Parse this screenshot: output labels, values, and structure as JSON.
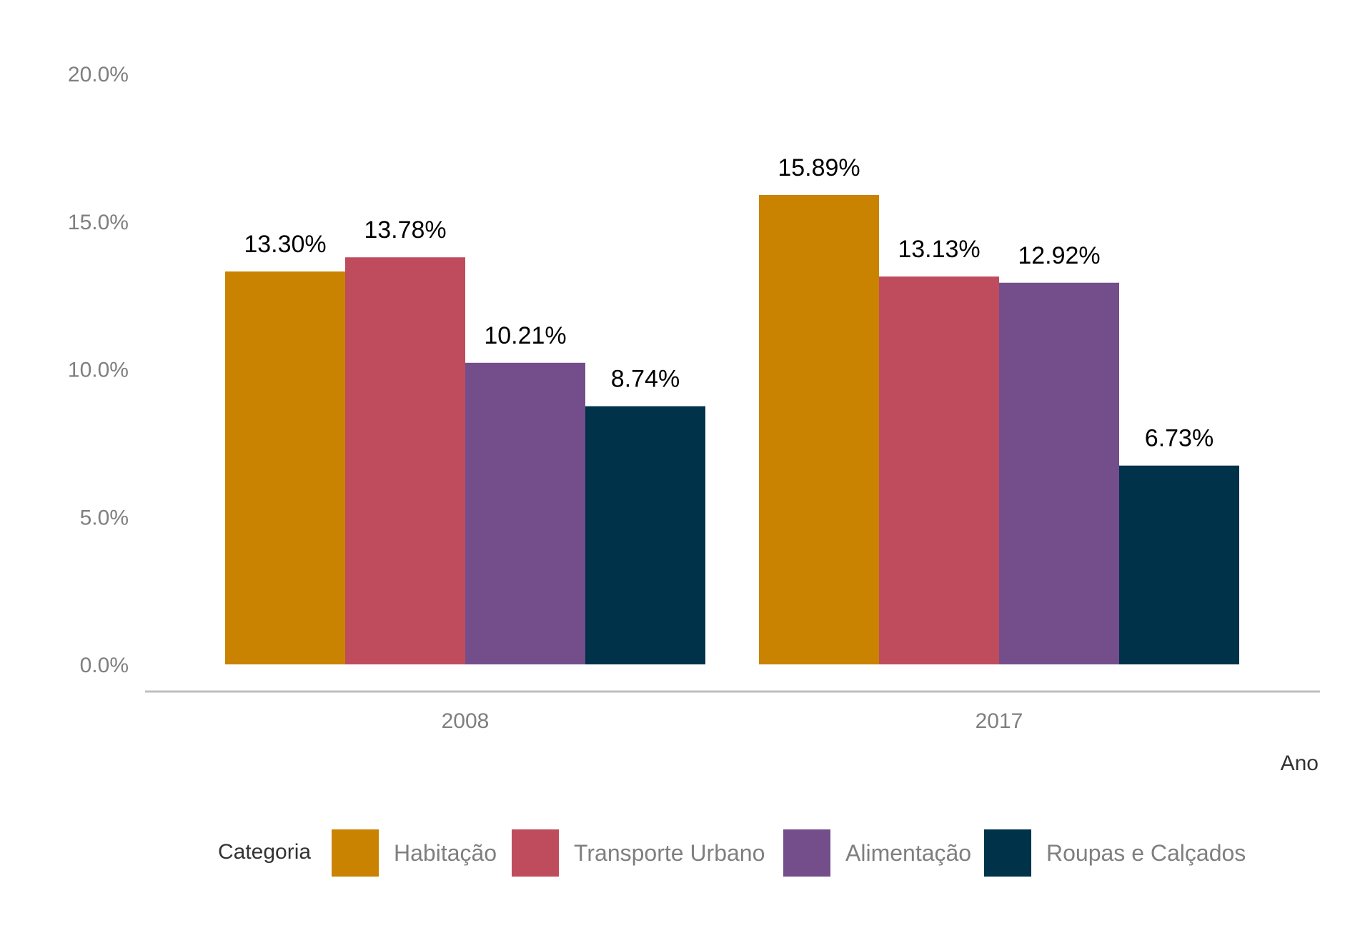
{
  "chart_data": {
    "type": "bar",
    "title": "",
    "xlabel": "Ano",
    "ylabel": "",
    "categories": [
      "2008",
      "2017"
    ],
    "ylim": [
      0,
      20
    ],
    "yticks": [
      "0.0%",
      "5.0%",
      "10.0%",
      "15.0%",
      "20.0%"
    ],
    "ytick_values": [
      0,
      5,
      10,
      15,
      20
    ],
    "grid": false,
    "legend": {
      "title": "Categoria",
      "position": "bottom"
    },
    "series": [
      {
        "name": "Habitação",
        "color": "#c98300",
        "values": [
          13.3,
          15.89
        ],
        "labels": [
          "13.30%",
          "15.89%"
        ]
      },
      {
        "name": "Transporte Urbano",
        "color": "#bf4c5c",
        "values": [
          13.78,
          13.13
        ],
        "labels": [
          "13.78%",
          "13.13%"
        ]
      },
      {
        "name": "Alimentação",
        "color": "#744d8b",
        "values": [
          10.21,
          12.92
        ],
        "labels": [
          "10.21%",
          "12.92%"
        ]
      },
      {
        "name": "Roupas e Calçados",
        "color": "#00324a",
        "values": [
          8.74,
          6.73
        ],
        "labels": [
          "8.74%",
          "6.73%"
        ]
      }
    ]
  }
}
